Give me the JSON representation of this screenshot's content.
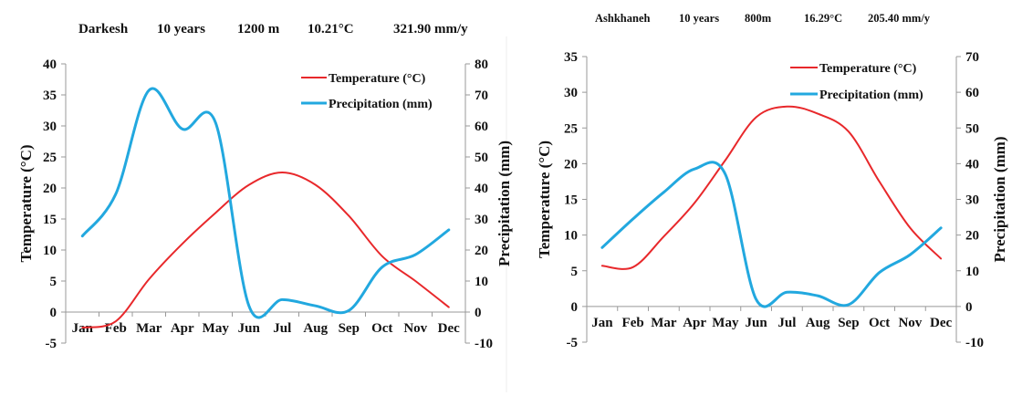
{
  "chart_data": [
    {
      "type": "line",
      "header": [
        "Darkesh",
        "10 years",
        "1200 m",
        "10.21°C",
        "321.90 mm/y"
      ],
      "categories": [
        "Jan",
        "Feb",
        "Mar",
        "Apr",
        "May",
        "Jun",
        "Jul",
        "Aug",
        "Sep",
        "Oct",
        "Nov",
        "Dec"
      ],
      "series": [
        {
          "name": "Temperature (°C)",
          "axis": "left",
          "color": "#e8282b",
          "values": [
            -2.5,
            -1.5,
            5.3,
            11.0,
            16.0,
            20.5,
            22.5,
            20.5,
            15.5,
            9.0,
            5.0,
            0.8
          ]
        },
        {
          "name": "Precipitation (mm)",
          "axis": "right",
          "color": "#22a8df",
          "values": [
            24.5,
            38.0,
            71.5,
            59.0,
            61.0,
            2.0,
            4.0,
            2.0,
            0.5,
            14.5,
            18.5,
            26.5
          ]
        }
      ],
      "ylabel_left": "Temperature (°C)",
      "ylabel_right": "Precipitation (mm)",
      "ylim_left": [
        -5,
        40
      ],
      "yticks_left": [
        -5,
        0,
        5,
        10,
        15,
        20,
        25,
        30,
        35,
        40
      ],
      "ylim_right": [
        -10,
        80
      ],
      "yticks_right": [
        -10,
        0,
        10,
        20,
        30,
        40,
        50,
        60,
        70,
        80
      ],
      "grid": false,
      "legend_position": "top-right"
    },
    {
      "type": "line",
      "header": [
        "Ashkhaneh",
        "10 years",
        "800m",
        "16.29°C",
        "205.40 mm/y"
      ],
      "categories": [
        "Jan",
        "Feb",
        "Mar",
        "Apr",
        "May",
        "Jun",
        "Jul",
        "Aug",
        "Sep",
        "Oct",
        "Nov",
        "Dec"
      ],
      "series": [
        {
          "name": "Temperature (°C)",
          "axis": "left",
          "color": "#e8282b",
          "values": [
            5.7,
            5.5,
            9.8,
            14.5,
            20.5,
            26.5,
            28.0,
            27.0,
            24.5,
            17.5,
            11.0,
            6.7
          ]
        },
        {
          "name": "Precipitation (mm)",
          "axis": "right",
          "color": "#22a8df",
          "values": [
            16.5,
            24.5,
            32.0,
            38.5,
            37.0,
            2.0,
            4.0,
            3.0,
            0.5,
            9.5,
            14.5,
            22.0
          ]
        }
      ],
      "ylabel_left": "Temperature (°C)",
      "ylabel_right": "Precipitation (mm)",
      "ylim_left": [
        -5,
        35
      ],
      "yticks_left": [
        -5,
        0,
        5,
        10,
        15,
        20,
        25,
        30,
        35
      ],
      "ylim_right": [
        -10,
        70
      ],
      "yticks_right": [
        -10,
        0,
        10,
        20,
        30,
        40,
        50,
        60,
        70
      ],
      "grid": false,
      "legend_position": "top-right"
    }
  ]
}
